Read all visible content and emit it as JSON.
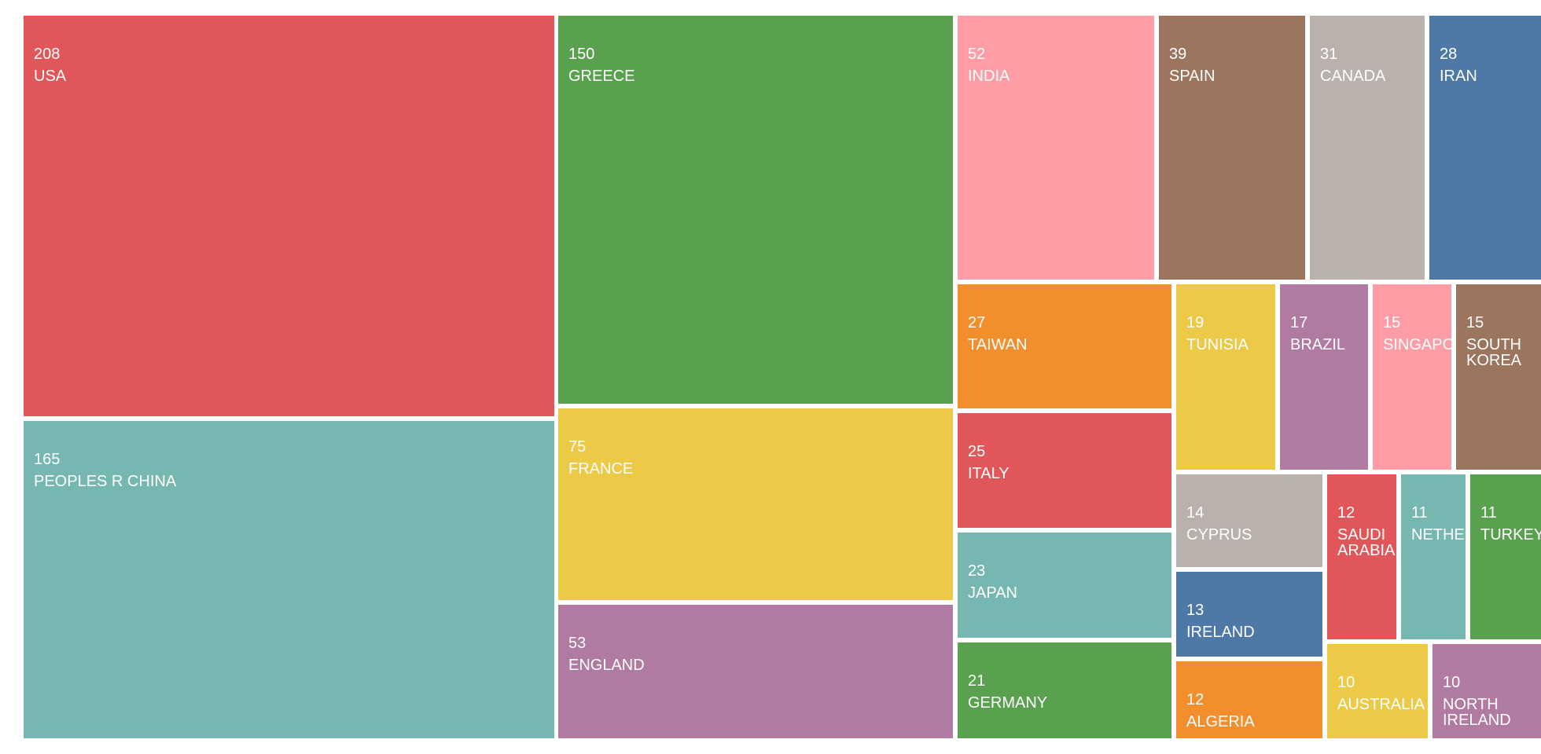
{
  "chart_data": {
    "type": "treemap",
    "items": [
      {
        "label": "USA",
        "value": 208,
        "color": "#e15759"
      },
      {
        "label": "PEOPLES R CHINA",
        "value": 165,
        "color": "#76b7b2"
      },
      {
        "label": "GREECE",
        "value": 150,
        "color": "#59a14f"
      },
      {
        "label": "FRANCE",
        "value": 75,
        "color": "#edc948"
      },
      {
        "label": "ENGLAND",
        "value": 53,
        "color": "#b07aa1"
      },
      {
        "label": "INDIA",
        "value": 52,
        "color": "#ff9da7"
      },
      {
        "label": "SPAIN",
        "value": 39,
        "color": "#9c755f"
      },
      {
        "label": "CANADA",
        "value": 31,
        "color": "#bab0ac"
      },
      {
        "label": "IRAN",
        "value": 28,
        "color": "#4e79a7"
      },
      {
        "label": "TAIWAN",
        "value": 27,
        "color": "#f28e2b"
      },
      {
        "label": "ITALY",
        "value": 25,
        "color": "#e15759"
      },
      {
        "label": "JAPAN",
        "value": 23,
        "color": "#76b7b2"
      },
      {
        "label": "GERMANY",
        "value": 21,
        "color": "#59a14f"
      },
      {
        "label": "TUNISIA",
        "value": 19,
        "color": "#edc948"
      },
      {
        "label": "BRAZIL",
        "value": 17,
        "color": "#b07aa1"
      },
      {
        "label": "SINGAPORE",
        "value": 15,
        "color": "#ff9da7"
      },
      {
        "label": "SOUTH KOREA",
        "value": 15,
        "color": "#9c755f"
      },
      {
        "label": "CYPRUS",
        "value": 14,
        "color": "#bab0ac"
      },
      {
        "label": "IRELAND",
        "value": 13,
        "color": "#4e79a7"
      },
      {
        "label": "ALGERIA",
        "value": 12,
        "color": "#f28e2b"
      },
      {
        "label": "SAUDI ARABIA",
        "value": 12,
        "color": "#e15759"
      },
      {
        "label": "NETHERLANDS",
        "value": 11,
        "color": "#76b7b2"
      },
      {
        "label": "TURKEY",
        "value": 11,
        "color": "#59a14f"
      },
      {
        "label": "AUSTRALIA",
        "value": 10,
        "color": "#edc948"
      },
      {
        "label": "NORTH IRELAND",
        "value": 10,
        "color": "#b07aa1"
      }
    ]
  }
}
